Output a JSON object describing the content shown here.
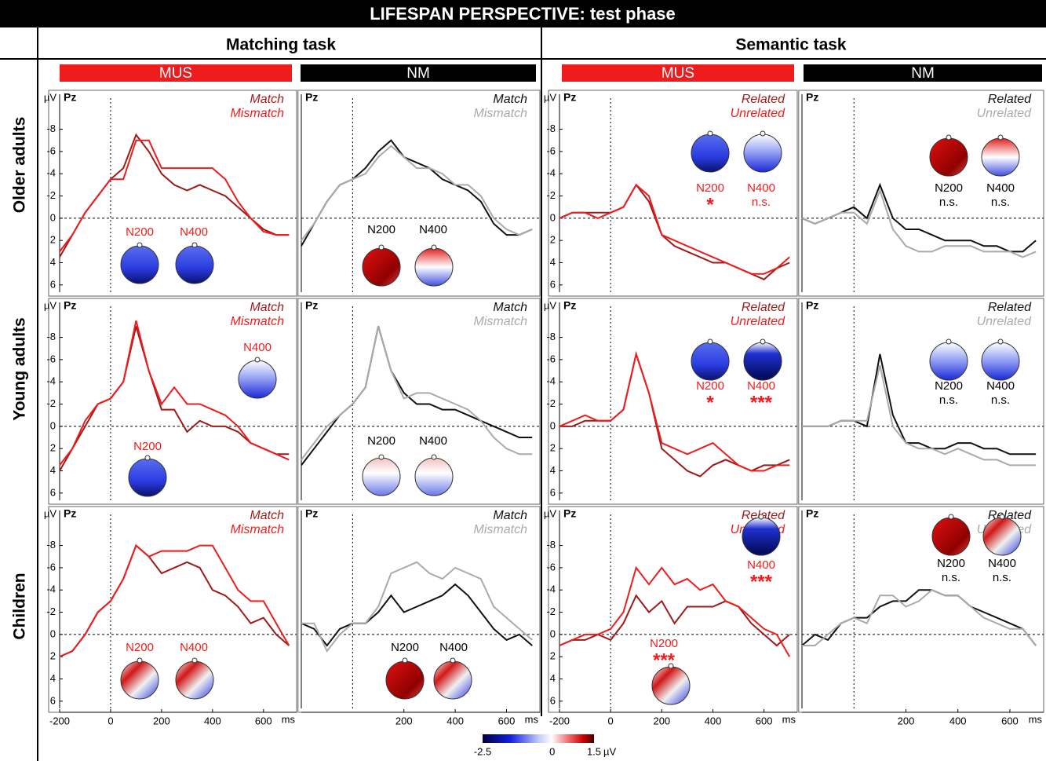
{
  "header": {
    "title": "LIFESPAN PERSPECTIVE: test phase"
  },
  "tasks": [
    "Matching task",
    "Semantic task"
  ],
  "groups": [
    "Older adults",
    "Young adults",
    "Children"
  ],
  "conditions": [
    {
      "name": "MUS",
      "color": "#ee1c1c"
    },
    {
      "name": "NM",
      "color": "#000000"
    }
  ],
  "colorbar": {
    "lim": [
      -2.5,
      1.5
    ],
    "ticks": [
      -2.5,
      0,
      1.5
    ],
    "unit": "µV"
  },
  "chart_data": [
    {
      "type": "line",
      "electrode": "Pz",
      "y_unit": "µV",
      "x": [
        -200,
        -150,
        -100,
        -50,
        0,
        50,
        100,
        150,
        200,
        250,
        300,
        350,
        400,
        450,
        500,
        550,
        600,
        650,
        700
      ],
      "xlim": [
        -200,
        730
      ],
      "ylim": [
        -11.5,
        7
      ],
      "invert_y": true,
      "yticks": [
        -8,
        -6,
        -4,
        -2,
        0,
        2,
        4,
        6
      ],
      "annotation_color": "#ee1c1c",
      "series": [
        {
          "name": "Match",
          "color": "#9e1a1a",
          "values": [
            3.5,
            1.5,
            -0.5,
            -2,
            -3.5,
            -4.5,
            -7.5,
            -6,
            -4,
            -3,
            -2.5,
            -3,
            -2.5,
            -2,
            -1,
            0,
            1,
            1.5,
            1.5
          ]
        },
        {
          "name": "Mismatch",
          "color": "#ee1c1c",
          "values": [
            3,
            1.5,
            -0.5,
            -2,
            -3.5,
            -3.5,
            -7,
            -7,
            -4.5,
            -4.5,
            -4.5,
            -4.5,
            -4.5,
            -3.5,
            -1.5,
            0,
            1.2,
            1.5,
            1.5
          ]
        }
      ],
      "annotations": [
        {
          "label": "N200"
        },
        {
          "label": "N400"
        }
      ]
    },
    {
      "type": "line",
      "electrode": "Pz",
      "x": [
        -200,
        -150,
        -100,
        -50,
        0,
        50,
        100,
        150,
        200,
        250,
        300,
        350,
        400,
        450,
        500,
        550,
        600,
        650,
        700
      ],
      "xlim": [
        -200,
        730
      ],
      "ylim": [
        -11.5,
        7
      ],
      "invert_y": true,
      "annotation_color": "#000000",
      "series": [
        {
          "name": "Match",
          "color": "#111111",
          "values": [
            2.5,
            0.5,
            -1.5,
            -3,
            -3.5,
            -4.5,
            -6,
            -7,
            -5.5,
            -5,
            -4.5,
            -3.5,
            -3,
            -2.5,
            -1.5,
            0.5,
            1.5,
            1.5,
            1
          ]
        },
        {
          "name": "Mismatch",
          "color": "#aaaaaa",
          "values": [
            2,
            0.5,
            -1.5,
            -3,
            -3.5,
            -4,
            -5.5,
            -6.5,
            -5.5,
            -4.5,
            -4.5,
            -4,
            -3,
            -3,
            -2,
            0,
            1,
            1.5,
            1
          ]
        }
      ],
      "annotations": [
        {
          "label": "N200"
        },
        {
          "label": "N400"
        }
      ]
    },
    {
      "type": "line",
      "electrode": "Pz",
      "y_unit": "µV",
      "x": [
        -200,
        -150,
        -100,
        -50,
        0,
        50,
        100,
        150,
        200,
        250,
        300,
        350,
        400,
        450,
        500,
        550,
        600,
        650,
        700
      ],
      "xlim": [
        -200,
        730
      ],
      "ylim": [
        -11.5,
        7
      ],
      "invert_y": true,
      "yticks": [
        -8,
        -6,
        -4,
        -2,
        0,
        2,
        4,
        6
      ],
      "annotation_color": "#ee1c1c",
      "series": [
        {
          "name": "Related",
          "color": "#9e1a1a",
          "values": [
            0,
            -0.5,
            -0.5,
            -0.5,
            -0.5,
            -1,
            -3,
            -1.5,
            1.5,
            2.5,
            3,
            3.5,
            4,
            4,
            4.5,
            5,
            5.5,
            4.5,
            4
          ]
        },
        {
          "name": "Unrelated",
          "color": "#ee1c1c",
          "values": [
            0,
            -0.5,
            -0.5,
            0,
            -0.5,
            -1,
            -3,
            -2,
            1.5,
            2,
            2.5,
            3,
            3.5,
            4,
            4.5,
            5,
            5,
            4.5,
            3.5
          ]
        }
      ],
      "annotations": [
        {
          "label": "N200",
          "sig": "*"
        },
        {
          "label": "N400",
          "sig": "n.s."
        }
      ]
    },
    {
      "type": "line",
      "electrode": "Pz",
      "x": [
        -200,
        -150,
        -100,
        -50,
        0,
        50,
        100,
        150,
        200,
        250,
        300,
        350,
        400,
        450,
        500,
        550,
        600,
        650,
        700
      ],
      "xlim": [
        -200,
        730
      ],
      "ylim": [
        -11.5,
        7
      ],
      "invert_y": true,
      "annotation_color": "#000000",
      "series": [
        {
          "name": "Related",
          "color": "#111111",
          "values": [
            0,
            0.5,
            0,
            -0.5,
            -1,
            0,
            -3,
            0,
            1,
            1,
            1.5,
            2,
            2,
            2,
            2.5,
            2.5,
            3,
            3,
            2
          ]
        },
        {
          "name": "Unrelated",
          "color": "#aaaaaa",
          "values": [
            0,
            0.5,
            0,
            -0.5,
            -0.5,
            0.5,
            -2.5,
            1,
            2.5,
            3,
            3,
            2.5,
            2.5,
            2.5,
            3,
            3,
            3,
            3.5,
            3
          ]
        }
      ],
      "annotations": [
        {
          "label": "N200",
          "sig": "n.s."
        },
        {
          "label": "N400",
          "sig": "n.s."
        }
      ]
    },
    {
      "type": "line",
      "electrode": "Pz",
      "y_unit": "µV",
      "x": [
        -200,
        -150,
        -100,
        -50,
        0,
        50,
        100,
        150,
        200,
        250,
        300,
        350,
        400,
        450,
        500,
        550,
        600,
        650,
        700
      ],
      "xlim": [
        -200,
        730
      ],
      "ylim": [
        -11.5,
        7
      ],
      "invert_y": true,
      "yticks": [
        -8,
        -6,
        -4,
        -2,
        0,
        2,
        4,
        6
      ],
      "annotation_color": "#ee1c1c",
      "series": [
        {
          "name": "Match",
          "color": "#9e1a1a",
          "values": [
            4,
            2,
            0,
            -2,
            -2.5,
            -4,
            -9,
            -5,
            -1.5,
            -1.5,
            0.5,
            -0.5,
            0,
            0,
            0.5,
            1.5,
            2,
            2.5,
            2.5
          ]
        },
        {
          "name": "Mismatch",
          "color": "#ee1c1c",
          "values": [
            3.5,
            2,
            -0.5,
            -2,
            -2.5,
            -4,
            -9.5,
            -5,
            -2,
            -3.5,
            -2,
            -2,
            -1.5,
            -1,
            0,
            1.5,
            2,
            2.5,
            3
          ]
        }
      ],
      "annotations": [
        {
          "label": "N400"
        },
        {
          "label": "N200"
        }
      ]
    },
    {
      "type": "line",
      "electrode": "Pz",
      "x": [
        -200,
        -150,
        -100,
        -50,
        0,
        50,
        100,
        150,
        200,
        250,
        300,
        350,
        400,
        450,
        500,
        550,
        600,
        650,
        700
      ],
      "xlim": [
        -200,
        730
      ],
      "ylim": [
        -11.5,
        7
      ],
      "invert_y": true,
      "annotation_color": "#000000",
      "series": [
        {
          "name": "Match",
          "color": "#111111",
          "values": [
            3.5,
            2,
            0.5,
            -1,
            -2,
            -3.5,
            -9,
            -5,
            -3,
            -2,
            -2,
            -1.5,
            -1.5,
            -1,
            -0.5,
            0,
            0.5,
            1,
            1
          ]
        },
        {
          "name": "Mismatch",
          "color": "#aaaaaa",
          "values": [
            3,
            1.5,
            0,
            -1,
            -2,
            -3.5,
            -9,
            -5,
            -2.5,
            -3,
            -3,
            -2.5,
            -2,
            -1.5,
            -0.5,
            1,
            2,
            2.5,
            2.5
          ]
        }
      ],
      "annotations": [
        {
          "label": "N200"
        },
        {
          "label": "N400"
        }
      ]
    },
    {
      "type": "line",
      "electrode": "Pz",
      "y_unit": "µV",
      "x": [
        -200,
        -150,
        -100,
        -50,
        0,
        50,
        100,
        150,
        200,
        250,
        300,
        350,
        400,
        450,
        500,
        550,
        600,
        650,
        700
      ],
      "xlim": [
        -200,
        730
      ],
      "ylim": [
        -11.5,
        7
      ],
      "invert_y": true,
      "yticks": [
        -8,
        -6,
        -4,
        -2,
        0,
        2,
        4,
        6
      ],
      "annotation_color": "#ee1c1c",
      "series": [
        {
          "name": "Related",
          "color": "#9e1a1a",
          "values": [
            0,
            0,
            -0.5,
            -0.5,
            -0.5,
            -1.5,
            -6.5,
            -3,
            2,
            3,
            4,
            4.5,
            3.5,
            3,
            3.5,
            4,
            3.5,
            3.5,
            3
          ]
        },
        {
          "name": "Unrelated",
          "color": "#ee1c1c",
          "values": [
            0,
            -0.5,
            -1,
            -0.5,
            -0.5,
            -1.5,
            -6.5,
            -3,
            1.5,
            2,
            2.5,
            2,
            1.5,
            2.5,
            3.5,
            4,
            4,
            3.5,
            3.5
          ]
        }
      ],
      "annotations": [
        {
          "label": "N200",
          "sig": "*"
        },
        {
          "label": "N400",
          "sig": "***"
        }
      ]
    },
    {
      "type": "line",
      "electrode": "Pz",
      "x": [
        -200,
        -150,
        -100,
        -50,
        0,
        50,
        100,
        150,
        200,
        250,
        300,
        350,
        400,
        450,
        500,
        550,
        600,
        650,
        700
      ],
      "xlim": [
        -200,
        730
      ],
      "ylim": [
        -11.5,
        7
      ],
      "invert_y": true,
      "annotation_color": "#000000",
      "series": [
        {
          "name": "Related",
          "color": "#111111",
          "values": [
            0,
            0,
            0,
            -0.5,
            -0.5,
            0,
            -6.5,
            -1,
            1.5,
            1.5,
            2,
            2,
            1.5,
            1.5,
            2,
            2,
            2.5,
            2.5,
            2.5
          ]
        },
        {
          "name": "Unrelated",
          "color": "#aaaaaa",
          "values": [
            0,
            0,
            0,
            -0.5,
            -0.5,
            -0.5,
            -5.5,
            0,
            1.5,
            2,
            2,
            2.5,
            2,
            2.5,
            3,
            3,
            3.5,
            3.5,
            3.5
          ]
        }
      ],
      "annotations": [
        {
          "label": "N200",
          "sig": "n.s."
        },
        {
          "label": "N400",
          "sig": "n.s."
        }
      ]
    },
    {
      "type": "line",
      "electrode": "Pz",
      "y_unit": "µV",
      "x_unit": "ms",
      "x": [
        -200,
        -150,
        -100,
        -50,
        0,
        50,
        100,
        150,
        200,
        250,
        300,
        350,
        400,
        450,
        500,
        550,
        600,
        650,
        700
      ],
      "xlim": [
        -200,
        730
      ],
      "ylim": [
        -11.5,
        7
      ],
      "invert_y": true,
      "yticks": [
        -8,
        -6,
        -4,
        -2,
        0,
        2,
        4,
        6
      ],
      "xticks": [
        -200,
        0,
        200,
        400,
        600
      ],
      "annotation_color": "#ee1c1c",
      "series": [
        {
          "name": "Match",
          "color": "#9e1a1a",
          "values": [
            2,
            1.5,
            0,
            -2,
            -3,
            -5,
            -8,
            -7,
            -5.5,
            -6,
            -6.5,
            -6,
            -4,
            -3.5,
            -2.5,
            -1,
            -1.5,
            0,
            1
          ]
        },
        {
          "name": "Mismatch",
          "color": "#ee1c1c",
          "values": [
            2,
            1.5,
            0,
            -2,
            -3,
            -5,
            -8,
            -7,
            -7.5,
            -7.5,
            -7.5,
            -8,
            -8,
            -6,
            -4,
            -3,
            -3,
            -1,
            1
          ]
        }
      ],
      "annotations": [
        {
          "label": "N200"
        },
        {
          "label": "N400"
        }
      ]
    },
    {
      "type": "line",
      "electrode": "Pz",
      "x_unit": "ms",
      "x": [
        -200,
        -150,
        -100,
        -50,
        0,
        50,
        100,
        150,
        200,
        250,
        300,
        350,
        400,
        450,
        500,
        550,
        600,
        650,
        700
      ],
      "xlim": [
        -200,
        730
      ],
      "ylim": [
        -11.5,
        7
      ],
      "invert_y": true,
      "xticks": [
        200,
        400,
        600
      ],
      "annotation_color": "#000000",
      "series": [
        {
          "name": "Match",
          "color": "#111111",
          "values": [
            -1,
            -0.5,
            1,
            -0.5,
            -1,
            -1,
            -2,
            -3.5,
            -2,
            -2.5,
            -3,
            -3.5,
            -4.5,
            -3.5,
            -2,
            -0.5,
            0.5,
            0,
            1
          ]
        },
        {
          "name": "Mismatch",
          "color": "#aaaaaa",
          "values": [
            -1,
            -1,
            1.5,
            0,
            -1,
            -1,
            -2.5,
            -5.5,
            -6,
            -6.5,
            -5.5,
            -5,
            -6,
            -5.5,
            -5,
            -2.5,
            -1.5,
            -0.5,
            0.5
          ]
        }
      ],
      "annotations": [
        {
          "label": "N200"
        },
        {
          "label": "N400"
        }
      ]
    },
    {
      "type": "line",
      "electrode": "Pz",
      "y_unit": "µV",
      "x_unit": "ms",
      "x": [
        -200,
        -150,
        -100,
        -50,
        0,
        50,
        100,
        150,
        200,
        250,
        300,
        350,
        400,
        450,
        500,
        550,
        600,
        650,
        700
      ],
      "xlim": [
        -200,
        730
      ],
      "ylim": [
        -11.5,
        7
      ],
      "invert_y": true,
      "yticks": [
        -8,
        -6,
        -4,
        -2,
        0,
        2,
        4,
        6
      ],
      "xticks": [
        -200,
        0,
        200,
        400,
        600
      ],
      "annotation_color": "#ee1c1c",
      "series": [
        {
          "name": "Related",
          "color": "#9e1a1a",
          "values": [
            1,
            0.5,
            0.5,
            0,
            0.5,
            -1,
            -3.5,
            -2,
            -3,
            -1,
            -2.5,
            -2.5,
            -2.5,
            -3,
            -2.5,
            -1,
            0,
            1,
            0
          ]
        },
        {
          "name": "Unrelated",
          "color": "#ee1c1c",
          "values": [
            1,
            0.5,
            0,
            0,
            -0.5,
            -2,
            -6,
            -4.5,
            -6,
            -4.5,
            -5,
            -4,
            -4.5,
            -3,
            -2.5,
            -1.5,
            -0.5,
            0,
            2
          ]
        }
      ],
      "annotations": [
        {
          "label": "N400",
          "sig": "***"
        },
        {
          "label": "N200",
          "sig": "***"
        }
      ]
    },
    {
      "type": "line",
      "electrode": "Pz",
      "x_unit": "ms",
      "x": [
        -200,
        -150,
        -100,
        -50,
        0,
        50,
        100,
        150,
        200,
        250,
        300,
        350,
        400,
        450,
        500,
        550,
        600,
        650,
        700
      ],
      "xlim": [
        -200,
        730
      ],
      "ylim": [
        -11.5,
        7
      ],
      "invert_y": true,
      "xticks": [
        200,
        400,
        600
      ],
      "annotation_color": "#000000",
      "series": [
        {
          "name": "Related",
          "color": "#111111",
          "values": [
            1,
            0,
            0.5,
            -1,
            -1.5,
            -1.5,
            -2.5,
            -3,
            -3,
            -4,
            -4,
            -3.5,
            -3.5,
            -2.5,
            -2,
            -1.5,
            -1,
            -0.5,
            1
          ]
        },
        {
          "name": "Unrelated",
          "color": "#aaaaaa",
          "values": [
            1,
            1,
            0,
            -1,
            -1.5,
            -1,
            -3.5,
            -3.5,
            -2.5,
            -3,
            -4,
            -3.5,
            -3.5,
            -2.5,
            -1.5,
            -1,
            -0.5,
            -0.5,
            1
          ]
        }
      ],
      "annotations": [
        {
          "label": "N200",
          "sig": "n.s."
        },
        {
          "label": "N400",
          "sig": "n.s."
        }
      ]
    }
  ]
}
